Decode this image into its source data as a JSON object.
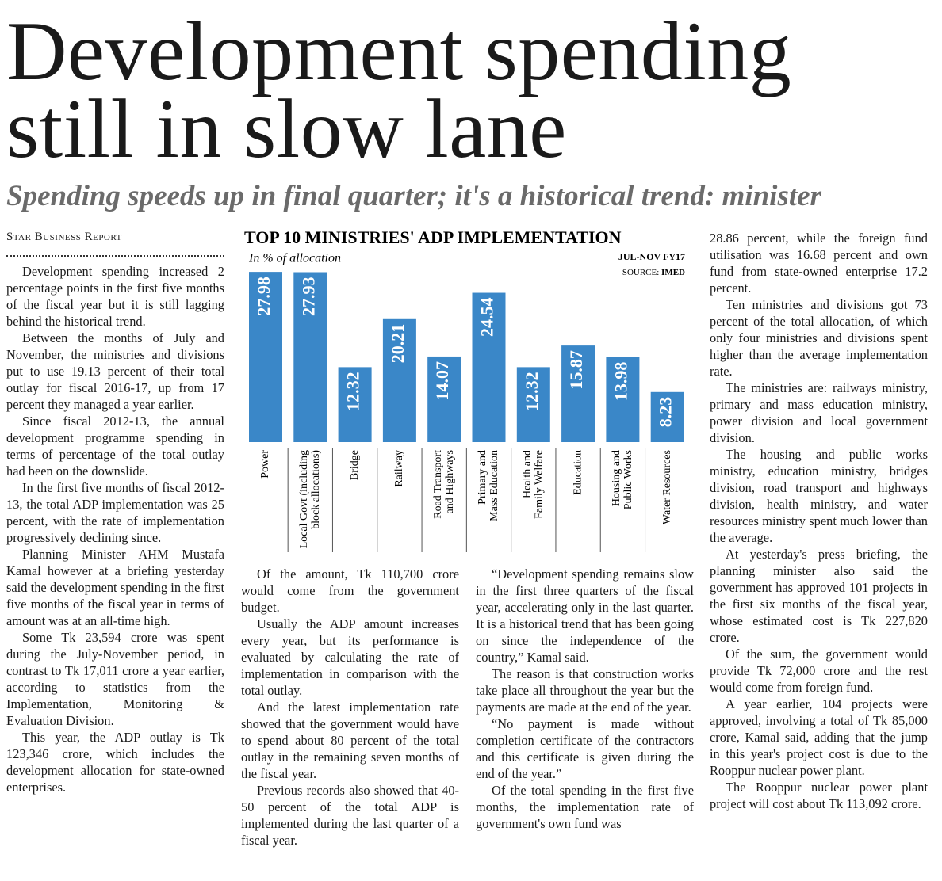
{
  "header": {
    "title_lines": [
      "Development spending",
      "still in slow lane"
    ],
    "subtitle": "Spending speeds up in final quarter; it's a historical trend: minister",
    "byline": "Star Business Report"
  },
  "columns": [
    [
      "Development spending increased 2 percentage points in the first five months of the fiscal year but it is still lagging behind the historical trend.",
      "Between the months of July and November, the ministries and divisions put to use 19.13 percent of their total outlay for fiscal 2016-17, up from 17 percent they managed a year earlier.",
      "Since fiscal 2012-13, the annual development programme spending in terms of percentage of the total outlay had been on the downslide.",
      "In the first five months of fiscal 2012-13, the total ADP implementation was 25 percent, with the rate of implementation progressively declining since.",
      "Planning Minister AHM Mustafa Kamal however at a briefing yesterday said the development spending in the first five months of the fiscal year in terms of amount was at an all-time high.",
      "Some Tk 23,594 crore was spent during the July-November period, in contrast to Tk 17,011 crore a year earlier, according to statistics from the Implementation, Monitoring & Evaluation Division.",
      "This year, the ADP outlay is Tk 123,346 crore, which includes the development allocation for state-owned enterprises."
    ],
    [
      "Of the amount, Tk 110,700 crore would come from the government budget.",
      "Usually the ADP amount increases every year, but its performance is evaluated by calculating the rate of implementation in comparison with the total outlay.",
      "And the latest implementation rate showed that the government would have to spend about 80 percent of the total outlay in the remaining seven months of the fiscal year.",
      "Previous records also showed that 40-50 percent of the total ADP is implemented during the last quarter of a fiscal year."
    ],
    [
      "“Development spending remains slow in the first three quarters of the fiscal year, accelerating only in the last quarter. It is a historical trend that has been going on since the independence of the country,” Kamal said.",
      "The reason is that construction works take place all throughout the year but the payments are made at the end of the year.",
      "“No payment is made without completion certificate of the contractors and this certificate is given during the end of the year.”",
      "Of the total spending in the first five months, the implementation rate of government's own fund was"
    ],
    [
      "28.86 percent, while the foreign fund utilisation was 16.68 percent and own fund from state-owned enterprise 17.2 percent.",
      "Ten ministries and divisions got 73 percent of the total allocation, of which only four ministries and divisions spent higher than the average implementation rate.",
      "The ministries are: railways ministry, primary and mass education ministry, power division and local government division.",
      "The housing and public works ministry, education ministry, bridges division, road transport and highways division, health ministry, and water resources ministry spent much lower than the average.",
      "At yesterday's press briefing, the planning minister also said the government has approved 101 projects in the first six months of the fiscal year, whose estimated cost is Tk 227,820 crore.",
      "Of the sum, the government would provide Tk 72,000 crore and the rest would come from foreign fund.",
      "A year earlier, 104 projects were approved, involving a total of Tk 85,000 crore, Kamal said, adding that the jump in this year's project cost is due to the Rooppur nuclear power plant.",
      "The Rooppur nuclear power plant project will cost about Tk 113,092 crore."
    ]
  ],
  "chart_data": {
    "type": "bar",
    "title": "TOP 10 MINISTRIES' ADP IMPLEMENTATION",
    "subtitle": "In % of allocation",
    "period": "JUL-NOV FY17",
    "source_label": "SOURCE:",
    "source": "IMED",
    "categories": [
      [
        "Power"
      ],
      [
        "Local Govt (including",
        "block allocations)"
      ],
      [
        "Bridge"
      ],
      [
        "Railway"
      ],
      [
        "Road Transport",
        "and Highways"
      ],
      [
        "Primary and",
        "Mass Education"
      ],
      [
        "Health and",
        "Family Welfare"
      ],
      [
        "Education"
      ],
      [
        "Housing and",
        "Public Works"
      ],
      [
        "Water Resources"
      ]
    ],
    "values": [
      27.98,
      27.93,
      12.32,
      20.21,
      14.07,
      24.54,
      12.32,
      15.87,
      13.98,
      8.23
    ],
    "color": "#3a87c8"
  }
}
